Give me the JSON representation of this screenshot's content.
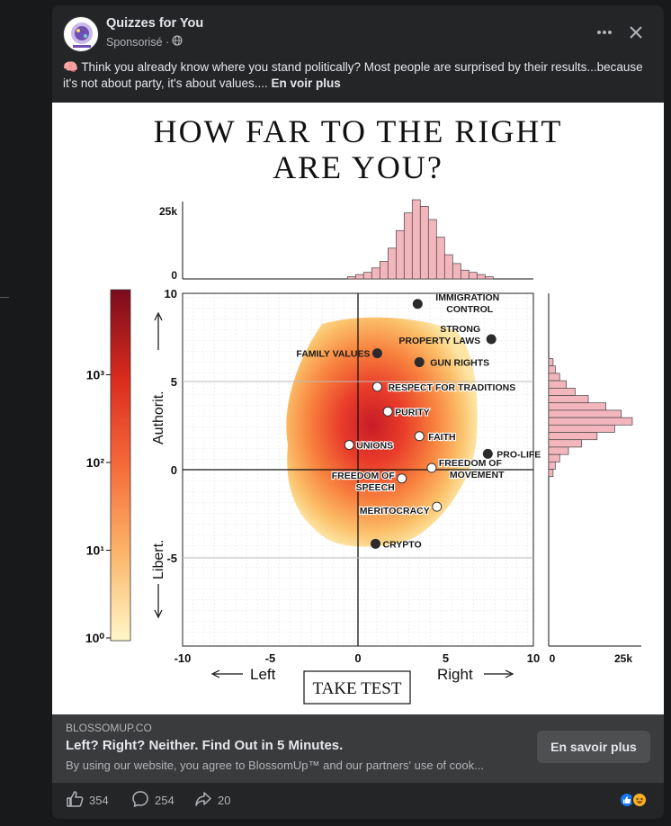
{
  "post": {
    "page_name": "Quizzes for You",
    "sponsored_label": "Sponsorisé ·",
    "text": "🧠 Think you already know where you stand politically? Most people are surprised by their results...because it's not about party, it's about values....",
    "see_more": "En voir plus"
  },
  "creative": {
    "title_line1": "HOW FAR TO THE RIGHT",
    "title_line2": "ARE YOU?",
    "take_test": "TAKE TEST",
    "left_label": "Left",
    "right_label": "Right",
    "y_upper_label": "Authorit.",
    "y_lower_label": "Libert."
  },
  "chart_data": {
    "type": "scatter",
    "xlim": [
      -10,
      10
    ],
    "ylim": [
      -10,
      10
    ],
    "x_ticks": [
      "-10",
      "-5",
      "0",
      "5",
      "10"
    ],
    "y_ticks": [
      "10",
      "5",
      "0",
      "-5"
    ],
    "colorbar_ticks": [
      "10³",
      "10²",
      "10¹",
      "10⁰"
    ],
    "top_hist_ticks": [
      "25k",
      "0"
    ],
    "right_hist_ticks": [
      "0",
      "25k"
    ],
    "points": [
      {
        "label": "IMMIGRATION CONTROL",
        "x": 3.4,
        "y": 9.4,
        "marker": "dark"
      },
      {
        "label": "STRONG PROPERTY LAWS",
        "x": 7.6,
        "y": 7.4,
        "marker": "dark"
      },
      {
        "label": "FAMILY VALUES",
        "x": 1.1,
        "y": 6.6,
        "marker": "dark"
      },
      {
        "label": "GUN RIGHTS",
        "x": 3.5,
        "y": 6.1,
        "marker": "dark"
      },
      {
        "label": "RESPECT FOR TRADITIONS",
        "x": 1.1,
        "y": 4.7,
        "marker": "light"
      },
      {
        "label": "PURITY",
        "x": 1.7,
        "y": 3.3,
        "marker": "light"
      },
      {
        "label": "FAITH",
        "x": 3.5,
        "y": 1.9,
        "marker": "light"
      },
      {
        "label": "UNIONS",
        "x": -0.5,
        "y": 1.4,
        "marker": "light"
      },
      {
        "label": "PRO-LIFE",
        "x": 7.4,
        "y": 0.9,
        "marker": "dark"
      },
      {
        "label": "FREEDOM OF MOVEMENT",
        "x": 4.2,
        "y": 0.1,
        "marker": "light"
      },
      {
        "label": "FREEDOM OF SPEECH",
        "x": 2.5,
        "y": -0.5,
        "marker": "light"
      },
      {
        "label": "MERITOCRACY",
        "x": 4.5,
        "y": -2.1,
        "marker": "light"
      },
      {
        "label": "CRYPTO",
        "x": 1.0,
        "y": -4.2,
        "marker": "dark"
      }
    ],
    "top_hist": [
      1,
      2,
      3,
      5,
      8,
      14,
      22,
      30,
      36,
      33,
      27,
      19,
      11,
      7,
      4,
      3,
      2,
      1
    ],
    "right_hist": [
      2,
      3,
      5,
      8,
      12,
      18,
      26,
      33,
      38,
      30,
      22,
      15,
      9,
      5,
      3,
      2
    ]
  },
  "link": {
    "domain": "BLOSSOMUP.CO",
    "title": "Left? Right? Neither. Find Out in 5 Minutes.",
    "description": "By using our website, you agree to BlossomUp™ and our partners' use of cook...",
    "cta": "En savoir plus"
  },
  "actions": {
    "likes": "354",
    "comments": "254",
    "shares": "20"
  },
  "colors": {
    "card_bg": "#242526",
    "link_bar_bg": "#3a3b3c",
    "hist_fill": "#f4b6bd",
    "like_blue": "#1877f2"
  }
}
